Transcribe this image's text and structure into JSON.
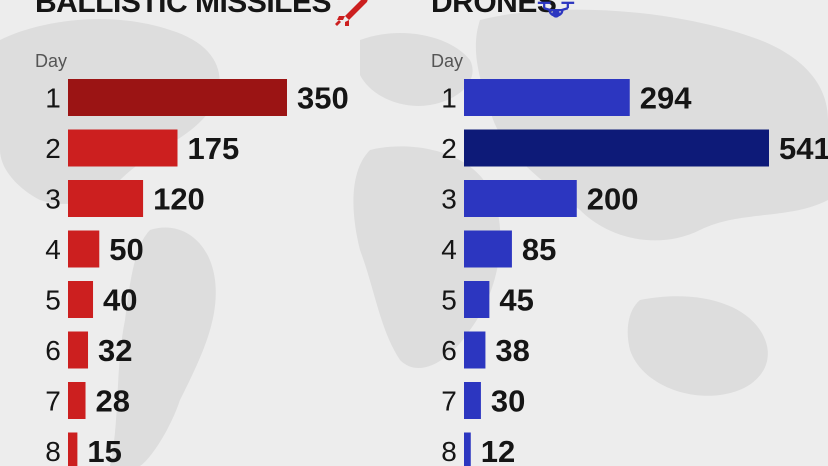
{
  "chart_data": [
    {
      "type": "bar",
      "orientation": "horizontal",
      "title": "BALLISTIC MISSILES",
      "icon": "missile-icon",
      "ylabel": "Day",
      "categories": [
        "1",
        "2",
        "3",
        "4",
        "5",
        "6",
        "7",
        "8"
      ],
      "values": [
        350,
        175,
        120,
        50,
        40,
        32,
        28,
        15
      ],
      "bar_color": "#cc1f1f",
      "highlight_color": "#9b1414",
      "highlight_index": 0,
      "data_labels": true
    },
    {
      "type": "bar",
      "orientation": "horizontal",
      "title": "DRONES",
      "icon": "drone-icon",
      "ylabel": "Day",
      "categories": [
        "1",
        "2",
        "3",
        "4",
        "5",
        "6",
        "7",
        "8"
      ],
      "values": [
        294,
        541,
        200,
        85,
        45,
        38,
        30,
        12
      ],
      "bar_color": "#2c36c0",
      "highlight_color": "#0d1a78",
      "highlight_index": 1,
      "data_labels": true
    }
  ],
  "colors": {
    "background": "#ededed",
    "map": "#dcdcdc",
    "text": "#151515"
  }
}
